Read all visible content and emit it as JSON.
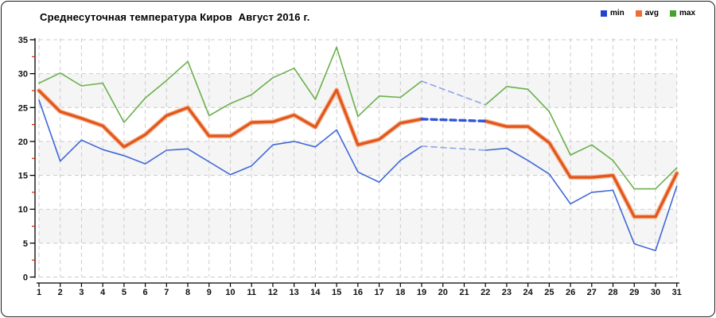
{
  "chart_data": {
    "type": "line",
    "title": "Среднесуточная температура Киров  Август 2016 г.",
    "xlabel": "",
    "ylabel": "",
    "ylim": [
      0,
      35
    ],
    "y_major_step": 5,
    "y_minor_step": 2.5,
    "y_tick_labels": [
      "0",
      "5",
      "10",
      "15",
      "20",
      "25",
      "30",
      "35"
    ],
    "x_tick_labels": [
      "1",
      "2",
      "3",
      "4",
      "5",
      "6",
      "7",
      "8",
      "9",
      "10",
      "11",
      "12",
      "13",
      "14",
      "15",
      "16",
      "17",
      "18",
      "19",
      "20",
      "21",
      "22",
      "23",
      "24",
      "25",
      "26",
      "27",
      "28",
      "29",
      "30",
      "31"
    ],
    "grid": "dashed vertical and horizontal gridlines",
    "bands": [
      [
        5,
        10
      ],
      [
        15,
        20
      ],
      [
        25,
        30
      ]
    ],
    "band_color": "#f5f5f5",
    "grid_color": "#cccccc",
    "axis_color": "#000000",
    "minor_tick_color": "#cc2200",
    "gap_days": [
      20,
      21
    ],
    "gap_style": {
      "avg_color": "#3054d6",
      "minmax_color": "#8ea6e8",
      "dash": "7 5",
      "note": "missing data days 20-21 bridged with blue dashed lines"
    },
    "legend": {
      "position": "top-right",
      "items": [
        {
          "label": "min",
          "color": "#2443cd"
        },
        {
          "label": "avg",
          "color": "#ed6d35"
        },
        {
          "label": "max",
          "color": "#46a22e"
        }
      ]
    },
    "categories": [
      1,
      2,
      3,
      4,
      5,
      6,
      7,
      8,
      9,
      10,
      11,
      12,
      13,
      14,
      15,
      16,
      17,
      18,
      19,
      20,
      21,
      22,
      23,
      24,
      25,
      26,
      27,
      28,
      29,
      30,
      31
    ],
    "series": [
      {
        "name": "min",
        "color": "#4169d6",
        "width": 1.6,
        "values": [
          26.1,
          17.1,
          20.2,
          18.8,
          17.9,
          16.7,
          18.7,
          18.9,
          17.0,
          15.1,
          16.4,
          19.5,
          20.0,
          19.2,
          21.7,
          15.5,
          14.0,
          17.2,
          19.3,
          null,
          null,
          18.7,
          19.0,
          17.2,
          15.2,
          10.8,
          12.5,
          12.8,
          4.9,
          3.9,
          13.4
        ]
      },
      {
        "name": "avg",
        "color": "#e2571d",
        "halo_color": "#f6c0a0",
        "width": 3.4,
        "values": [
          27.5,
          24.4,
          23.4,
          22.3,
          19.2,
          21.0,
          23.8,
          25.0,
          20.8,
          20.8,
          22.8,
          22.9,
          23.9,
          22.1,
          27.6,
          19.5,
          20.3,
          22.7,
          23.3,
          null,
          null,
          23.0,
          22.2,
          22.2,
          19.8,
          14.7,
          14.7,
          15.0,
          8.9,
          8.9,
          15.3
        ]
      },
      {
        "name": "max",
        "color": "#6ab04c",
        "width": 1.6,
        "values": [
          28.6,
          30.1,
          28.2,
          28.6,
          22.8,
          26.4,
          29.0,
          31.8,
          23.8,
          25.6,
          26.9,
          29.4,
          30.8,
          26.2,
          33.9,
          23.7,
          26.7,
          26.5,
          28.9,
          null,
          null,
          25.4,
          28.1,
          27.7,
          24.4,
          18.0,
          19.5,
          17.2,
          13.0,
          13.0,
          16.1
        ]
      }
    ]
  }
}
